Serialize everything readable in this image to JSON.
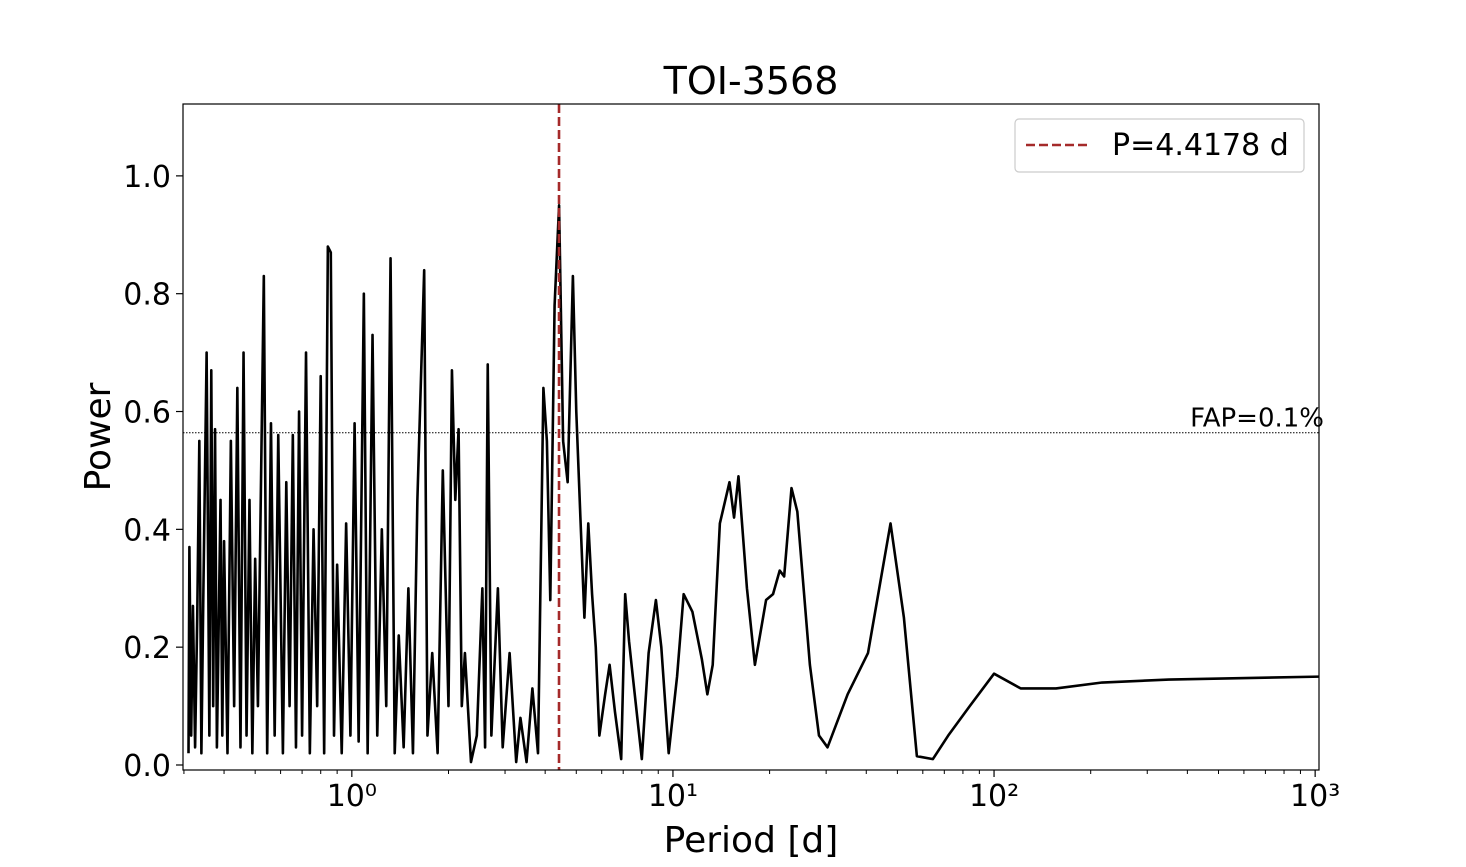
{
  "chart_data": {
    "type": "line",
    "title": "TOI-3568",
    "xlabel": "Period [d]",
    "ylabel": "Power",
    "xscale": "log",
    "xlim": [
      0.298,
      1028
    ],
    "ylim": [
      -0.0085,
      1.122
    ],
    "xticks": [
      {
        "value": 1,
        "label": "10⁰"
      },
      {
        "value": 10,
        "label": "10¹"
      },
      {
        "value": 100,
        "label": "10²"
      },
      {
        "value": 1000,
        "label": "10³"
      }
    ],
    "xminorticks": [
      0.3,
      0.4,
      0.5,
      0.6,
      0.7,
      0.8,
      0.9,
      2,
      3,
      4,
      5,
      6,
      7,
      8,
      9,
      20,
      30,
      40,
      50,
      60,
      70,
      80,
      90,
      200,
      300,
      400,
      500,
      600,
      700,
      800,
      900
    ],
    "yticks": [
      {
        "value": 0,
        "label": "0.0"
      },
      {
        "value": 0.2,
        "label": "0.2"
      },
      {
        "value": 0.4,
        "label": "0.4"
      },
      {
        "value": 0.6,
        "label": "0.6"
      },
      {
        "value": 0.8,
        "label": "0.8"
      },
      {
        "value": 1,
        "label": "1.0"
      }
    ],
    "series": [
      {
        "color": "#000000",
        "x": [
          0.31,
          0.312,
          0.316,
          0.32,
          0.325,
          0.33,
          0.335,
          0.34,
          0.345,
          0.353,
          0.36,
          0.365,
          0.37,
          0.375,
          0.38,
          0.39,
          0.395,
          0.4,
          0.41,
          0.42,
          0.43,
          0.44,
          0.45,
          0.46,
          0.47,
          0.48,
          0.49,
          0.5,
          0.51,
          0.532,
          0.545,
          0.56,
          0.575,
          0.59,
          0.61,
          0.625,
          0.64,
          0.655,
          0.67,
          0.685,
          0.7,
          0.72,
          0.74,
          0.76,
          0.78,
          0.8,
          0.82,
          0.842,
          0.86,
          0.88,
          0.9,
          0.93,
          0.96,
          0.99,
          1.02,
          1.05,
          1.09,
          1.12,
          1.16,
          1.2,
          1.24,
          1.28,
          1.32,
          1.36,
          1.4,
          1.45,
          1.5,
          1.55,
          1.6,
          1.68,
          1.72,
          1.78,
          1.85,
          1.92,
          2.0,
          2.05,
          2.1,
          2.15,
          2.2,
          2.25,
          2.35,
          2.45,
          2.55,
          2.6,
          2.65,
          2.72,
          2.85,
          2.95,
          3.1,
          3.25,
          3.35,
          3.5,
          3.65,
          3.8,
          3.95,
          4.05,
          4.15,
          4.28,
          4.42,
          4.55,
          4.7,
          4.88,
          5.0,
          5.15,
          5.3,
          5.45,
          5.6,
          5.75,
          5.9,
          6.15,
          6.35,
          6.6,
          6.9,
          7.1,
          7.3,
          7.5,
          8.0,
          8.4,
          8.85,
          9.2,
          9.7,
          10.3,
          10.8,
          11.5,
          12.3,
          12.8,
          13.3,
          14.0,
          15.0,
          15.5,
          16.0,
          17.0,
          18.0,
          19.5,
          20.5,
          21.5,
          22.2,
          23.4,
          24.4,
          26.7,
          28.5,
          30.3,
          35,
          40.5,
          47.6,
          52.4,
          57.5,
          64.5,
          72,
          84,
          100,
          121,
          156,
          217,
          350,
          1028
        ],
        "values": [
          0.02,
          0.37,
          0.05,
          0.27,
          0.03,
          0.25,
          0.55,
          0.02,
          0.3,
          0.7,
          0.05,
          0.67,
          0.1,
          0.57,
          0.03,
          0.45,
          0.05,
          0.38,
          0.02,
          0.55,
          0.1,
          0.64,
          0.03,
          0.7,
          0.05,
          0.45,
          0.02,
          0.35,
          0.1,
          0.83,
          0.02,
          0.58,
          0.05,
          0.56,
          0.02,
          0.48,
          0.1,
          0.56,
          0.03,
          0.6,
          0.05,
          0.7,
          0.02,
          0.4,
          0.1,
          0.66,
          0.02,
          0.88,
          0.87,
          0.05,
          0.34,
          0.02,
          0.41,
          0.05,
          0.58,
          0.04,
          0.8,
          0.02,
          0.73,
          0.05,
          0.4,
          0.1,
          0.86,
          0.02,
          0.22,
          0.03,
          0.3,
          0.02,
          0.45,
          0.84,
          0.05,
          0.19,
          0.02,
          0.5,
          0.1,
          0.67,
          0.45,
          0.57,
          0.1,
          0.19,
          0.005,
          0.05,
          0.3,
          0.03,
          0.68,
          0.05,
          0.3,
          0.03,
          0.19,
          0.005,
          0.08,
          0.005,
          0.13,
          0.02,
          0.64,
          0.55,
          0.28,
          0.78,
          0.95,
          0.55,
          0.48,
          0.83,
          0.6,
          0.42,
          0.25,
          0.41,
          0.29,
          0.2,
          0.05,
          0.12,
          0.17,
          0.09,
          0.01,
          0.29,
          0.21,
          0.15,
          0.01,
          0.19,
          0.28,
          0.2,
          0.02,
          0.15,
          0.29,
          0.26,
          0.18,
          0.12,
          0.17,
          0.41,
          0.48,
          0.42,
          0.49,
          0.3,
          0.17,
          0.28,
          0.29,
          0.33,
          0.32,
          0.47,
          0.43,
          0.17,
          0.05,
          0.03,
          0.12,
          0.19,
          0.41,
          0.25,
          0.015,
          0.01,
          0.05,
          0.1,
          0.155,
          0.13,
          0.13,
          0.14,
          0.145,
          0.15
        ]
      }
    ],
    "period_line": {
      "value": 4.4178,
      "label": "P=4.4178 d",
      "color": "#a52a2a"
    },
    "fap": {
      "value": 0.564,
      "label": "FAP=0.1%"
    },
    "legend": "upper right"
  }
}
